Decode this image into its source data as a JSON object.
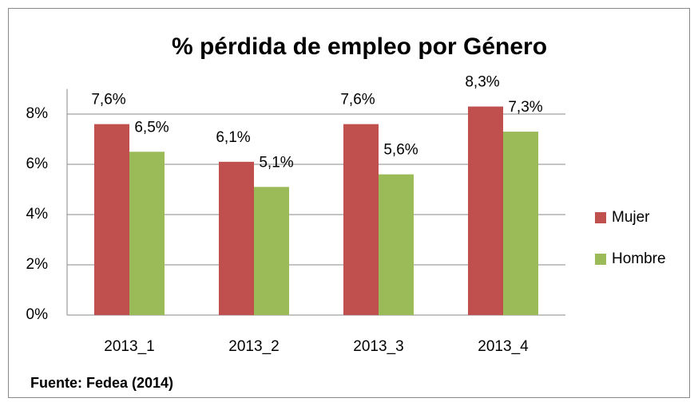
{
  "chart_data": {
    "type": "bar",
    "title": "% pérdida de empleo por Género",
    "categories": [
      "2013_1",
      "2013_2",
      "2013_3",
      "2013_4"
    ],
    "series": [
      {
        "name": "Mujer",
        "color": "#c0504d",
        "values": [
          7.6,
          6.1,
          7.6,
          8.3
        ],
        "value_labels": [
          "7,6%",
          "6,1%",
          "7,6%",
          "8,3%"
        ]
      },
      {
        "name": "Hombre",
        "color": "#9bbb59",
        "values": [
          6.5,
          5.1,
          5.6,
          7.3
        ],
        "value_labels": [
          "6,5%",
          "5,1%",
          "5,6%",
          "7,3%"
        ]
      }
    ],
    "ylim": [
      0,
      9
    ],
    "yticks": [
      {
        "value": 0,
        "label": "0%"
      },
      {
        "value": 2,
        "label": "2%"
      },
      {
        "value": 4,
        "label": "4%"
      },
      {
        "value": 6,
        "label": "6%"
      },
      {
        "value": 8,
        "label": "8%"
      }
    ],
    "grid": true,
    "legend": "right",
    "annotation": "Fuente: Fedea (2014)"
  }
}
